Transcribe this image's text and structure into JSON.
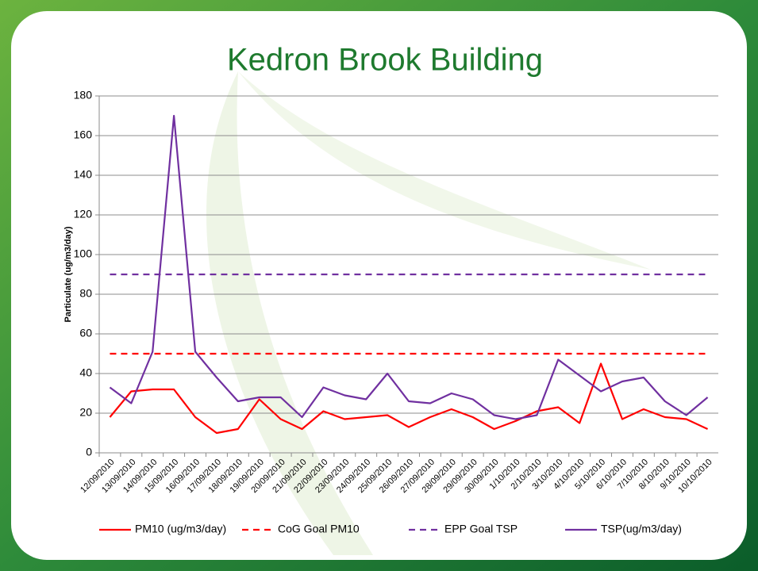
{
  "chart_data": {
    "type": "line",
    "title": "Kedron Brook Building",
    "y_label": "Particulate (ug/m3/day)",
    "categories": [
      "12/09/2010",
      "13/09/2010",
      "14/09/2010",
      "15/09/2010",
      "16/09/2010",
      "17/09/2010",
      "18/09/2010",
      "19/09/2010",
      "20/09/2010",
      "21/09/2010",
      "22/09/2010",
      "23/09/2010",
      "24/09/2010",
      "25/09/2010",
      "26/09/2010",
      "27/09/2010",
      "28/09/2010",
      "29/09/2010",
      "30/09/2010",
      "1/10/2010",
      "2/10/2010",
      "3/10/2010",
      "4/10/2010",
      "5/10/2010",
      "6/10/2010",
      "7/10/2010",
      "8/10/2010",
      "9/10/2010",
      "10/10/2010"
    ],
    "series": [
      {
        "name": "PM10 (ug/m3/day)",
        "color": "#ff0000",
        "dashed": false,
        "values": [
          18,
          31,
          32,
          32,
          18,
          10,
          12,
          27,
          17,
          12,
          21,
          17,
          18,
          19,
          13,
          18,
          22,
          18,
          12,
          16,
          21,
          23,
          15,
          45,
          17,
          22,
          18,
          17,
          12
        ]
      },
      {
        "name": "CoG Goal PM10",
        "color": "#ff0000",
        "dashed": true,
        "values": [
          50,
          50,
          50,
          50,
          50,
          50,
          50,
          50,
          50,
          50,
          50,
          50,
          50,
          50,
          50,
          50,
          50,
          50,
          50,
          50,
          50,
          50,
          50,
          50,
          50,
          50,
          50,
          50,
          50
        ]
      },
      {
        "name": "EPP Goal TSP",
        "color": "#7030a0",
        "dashed": true,
        "values": [
          90,
          90,
          90,
          90,
          90,
          90,
          90,
          90,
          90,
          90,
          90,
          90,
          90,
          90,
          90,
          90,
          90,
          90,
          90,
          90,
          90,
          90,
          90,
          90,
          90,
          90,
          90,
          90,
          90
        ]
      },
      {
        "name": "TSP(ug/m3/day)",
        "color": "#7030a0",
        "dashed": false,
        "values": [
          33,
          25,
          51,
          170,
          51,
          38,
          26,
          28,
          28,
          18,
          33,
          29,
          27,
          40,
          26,
          25,
          30,
          27,
          19,
          17,
          19,
          47,
          39,
          31,
          36,
          38,
          26,
          19,
          28
        ]
      }
    ],
    "ylim": [
      0,
      180
    ],
    "yticks": [
      0,
      20,
      40,
      60,
      80,
      100,
      120,
      140,
      160,
      180
    ],
    "grid": true,
    "legend": "bottom"
  }
}
